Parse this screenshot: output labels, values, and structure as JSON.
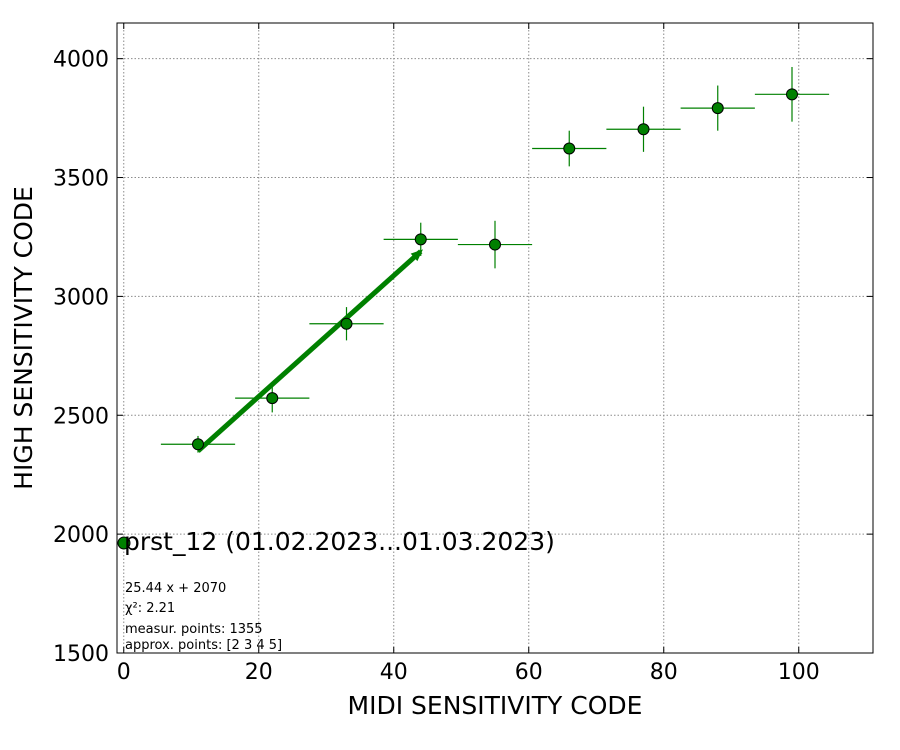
{
  "chart_data": {
    "type": "scatter",
    "xlabel": "MIDI SENSITIVITY CODE",
    "ylabel": "HIGH SENSITIVITY CODE",
    "xlim": [
      -1,
      111
    ],
    "ylim": [
      1500,
      4150
    ],
    "x_ticks": [
      0,
      20,
      40,
      60,
      80,
      100
    ],
    "y_ticks": [
      1500,
      2000,
      2500,
      3000,
      3500,
      4000
    ],
    "grid": true,
    "legend": {
      "label": "prst_12 (01.02.2023...01.03.2023)",
      "placement": "lower-left",
      "color": "#008000"
    },
    "series": [
      {
        "name": "prst_12 (01.02.2023...01.03.2023)",
        "color": "#008000",
        "points": [
          {
            "x": 11,
            "y": 2378,
            "xerr": 5.5,
            "yerr": 35
          },
          {
            "x": 22,
            "y": 2572,
            "xerr": 5.5,
            "yerr": 60
          },
          {
            "x": 33,
            "y": 2885,
            "xerr": 5.5,
            "yerr": 70
          },
          {
            "x": 44,
            "y": 3240,
            "xerr": 5.5,
            "yerr": 70
          },
          {
            "x": 55,
            "y": 3218,
            "xerr": 5.5,
            "yerr": 100
          },
          {
            "x": 66,
            "y": 3622,
            "xerr": 5.5,
            "yerr": 75
          },
          {
            "x": 77,
            "y": 3703,
            "xerr": 5.5,
            "yerr": 95
          },
          {
            "x": 88,
            "y": 3792,
            "xerr": 5.5,
            "yerr": 95
          },
          {
            "x": 99,
            "y": 3850,
            "xerr": 5.5,
            "yerr": 115
          }
        ]
      }
    ],
    "fit_line": {
      "slope": 25.44,
      "intercept": 2070,
      "x_range": [
        11,
        44
      ],
      "color": "#008000"
    },
    "annotations": [
      "25.44 x + 2070",
      "χ²: 2.21",
      "measur. points: 1355",
      "approx. points: [2 3 4 5]"
    ]
  }
}
